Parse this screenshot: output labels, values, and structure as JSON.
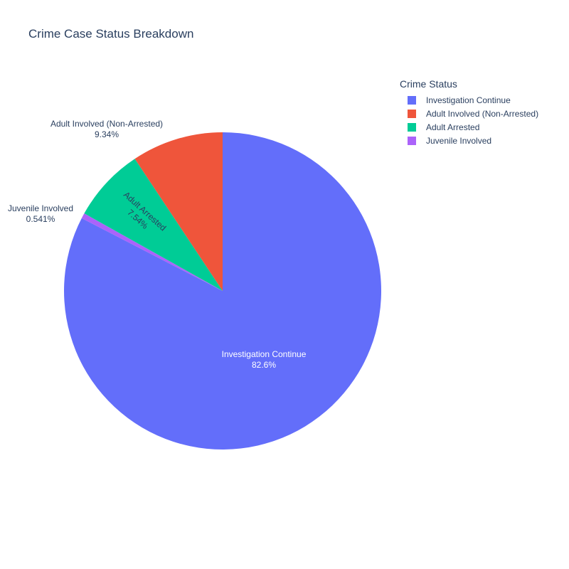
{
  "chart_data": {
    "type": "pie",
    "title": "Crime Case Status Breakdown",
    "legend_title": "Crime Status",
    "legend_position": "top-right",
    "direction": "clockwise",
    "rotation_start": "top",
    "slices": [
      {
        "label": "Investigation Continue",
        "percent": 82.6,
        "percent_text": "82.6%",
        "color": "#636efa",
        "text_color": "#ffffff",
        "text_position": "inside"
      },
      {
        "label": "Juvenile Involved",
        "percent": 0.541,
        "percent_text": "0.541%",
        "color": "#ab63fa",
        "text_color": "#2a3f5f",
        "text_position": "outside"
      },
      {
        "label": "Adult Arrested",
        "percent": 7.54,
        "percent_text": "7.54%",
        "color": "#00cc96",
        "text_color": "#2a3f5f",
        "text_position": "inside-rotated"
      },
      {
        "label": "Adult Involved (Non-Arrested)",
        "percent": 9.34,
        "percent_text": "9.34%",
        "color": "#ef553b",
        "text_color": "#2a3f5f",
        "text_position": "outside"
      }
    ],
    "legend_order": [
      "Investigation Continue",
      "Adult Involved (Non-Arrested)",
      "Adult Arrested",
      "Juvenile Involved"
    ]
  }
}
